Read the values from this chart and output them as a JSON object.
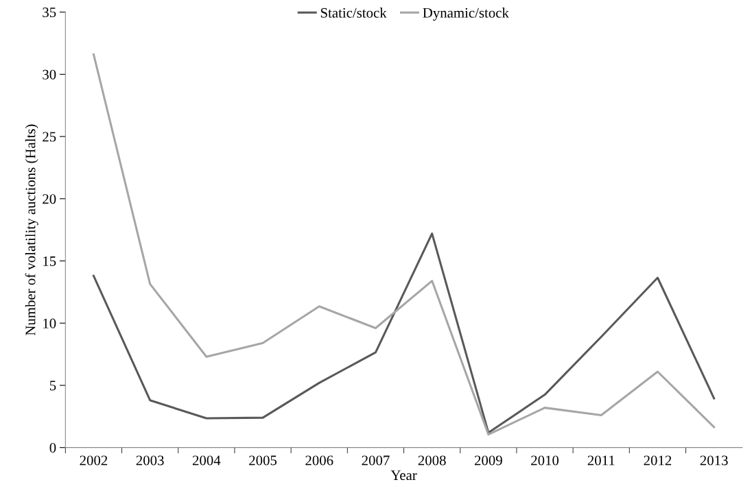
{
  "chart_data": {
    "type": "line",
    "xlabel": "Year",
    "ylabel": "Number of volatility auctions (Halts)",
    "categories": [
      "2002",
      "2003",
      "2004",
      "2005",
      "2006",
      "2007",
      "2008",
      "2009",
      "2010",
      "2011",
      "2012",
      "2013"
    ],
    "series": [
      {
        "name": "Static/stock",
        "color": "#595959",
        "values": [
          13.8,
          3.8,
          2.35,
          2.4,
          5.2,
          7.65,
          17.2,
          1.2,
          4.25,
          8.9,
          13.65,
          3.95
        ]
      },
      {
        "name": "Dynamic/stock",
        "color": "#a6a6a6",
        "values": [
          31.6,
          13.15,
          7.3,
          8.4,
          11.35,
          9.6,
          13.4,
          1.05,
          3.2,
          2.6,
          6.1,
          1.65
        ]
      }
    ],
    "ylim": [
      0,
      35
    ],
    "yticks": [
      0,
      5,
      10,
      15,
      20,
      25,
      30,
      35
    ],
    "grid": false,
    "legend": "top",
    "marker": "none",
    "line_style": "solid"
  }
}
